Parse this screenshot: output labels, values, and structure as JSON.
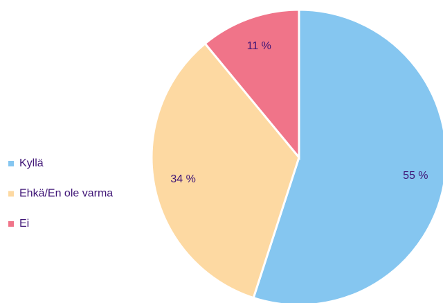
{
  "chart_data": {
    "type": "pie",
    "categories": [
      "Kyllä",
      "Ehkä/En ole varma",
      "Ei"
    ],
    "values": [
      55,
      34,
      11
    ],
    "value_labels": [
      "55 %",
      "34 %",
      "11 %"
    ],
    "colors": [
      "#85c6f0",
      "#fdd9a2",
      "#f07489"
    ],
    "legend": "left"
  }
}
